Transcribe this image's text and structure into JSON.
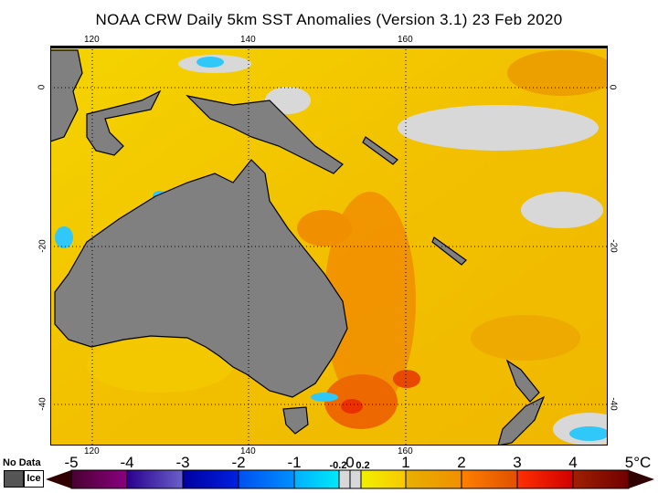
{
  "title": "NOAA CRW Daily 5km SST Anomalies (Version 3.1)   23 Feb 2020",
  "lon_labels": [
    "120",
    "140",
    "160"
  ],
  "lat_labels": [
    "0",
    "-20",
    "-40"
  ],
  "legend": {
    "no_data": "No Data",
    "ice": "Ice",
    "ticks": [
      "-5",
      "-4",
      "-3",
      "-2",
      "-1",
      "1",
      "2",
      "3",
      "4",
      "5°C"
    ],
    "small_ticks": [
      "-0.2",
      "0",
      "0.2"
    ],
    "colors": {
      "land": "#808080",
      "ice": "#ffffff",
      "near_zero": "#d8d8d8"
    }
  }
}
